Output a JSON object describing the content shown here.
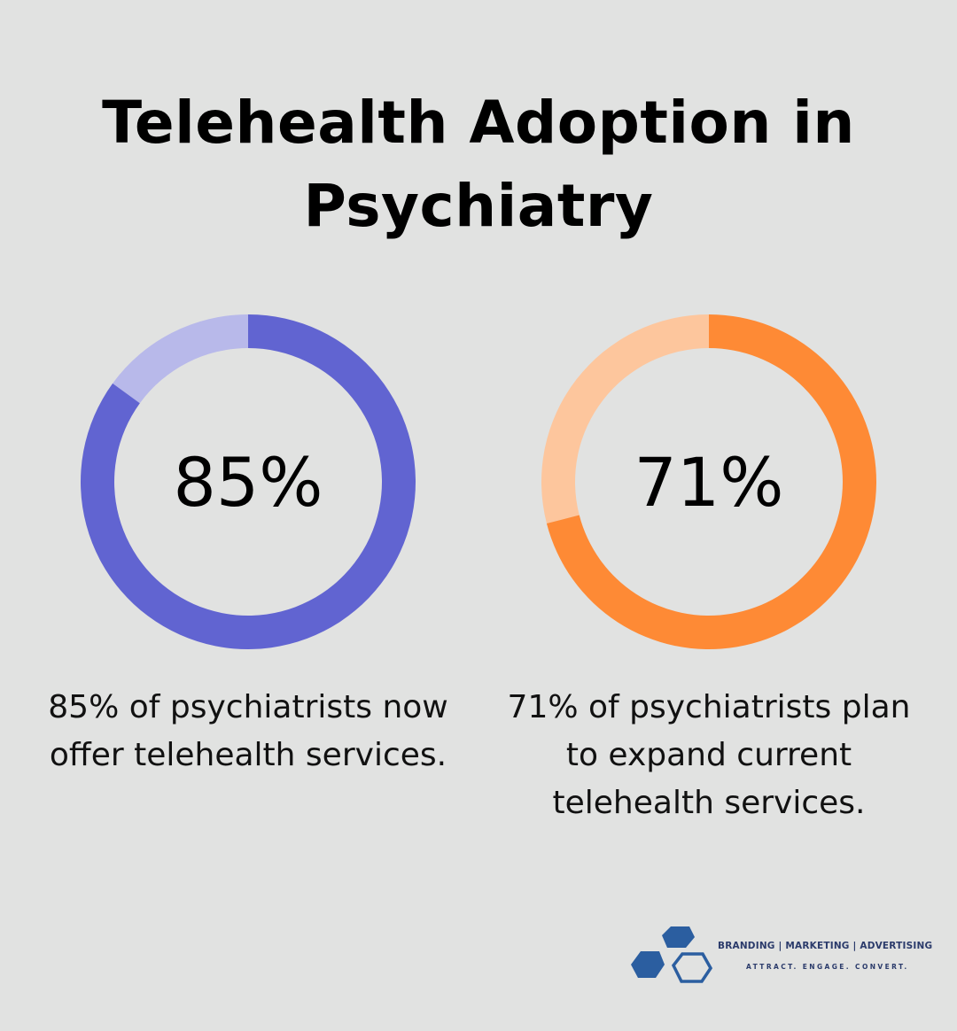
{
  "title_line1": "Telehealth Adoption in",
  "title_line2": "Psychiatry",
  "chart_data": [
    {
      "type": "pie",
      "subtype": "donut",
      "value": 85,
      "remainder": 15,
      "label": "85%",
      "caption": "85% of psychiatrists now offer telehealth services.",
      "colors": {
        "filled": "#6164d1",
        "remainder": "#b8b9ea"
      }
    },
    {
      "type": "pie",
      "subtype": "donut",
      "value": 71,
      "remainder": 29,
      "label": "71%",
      "caption": "71% of psychiatrists plan to expand current telehealth services.",
      "colors": {
        "filled": "#fe8a35",
        "remainder": "#fdc69d"
      }
    }
  ],
  "logo": {
    "tagline": "BRANDING | MARKETING | ADVERTISING",
    "slogan": "ATTRACT. ENGAGE. CONVERT.",
    "color": "#2b5ea0"
  }
}
